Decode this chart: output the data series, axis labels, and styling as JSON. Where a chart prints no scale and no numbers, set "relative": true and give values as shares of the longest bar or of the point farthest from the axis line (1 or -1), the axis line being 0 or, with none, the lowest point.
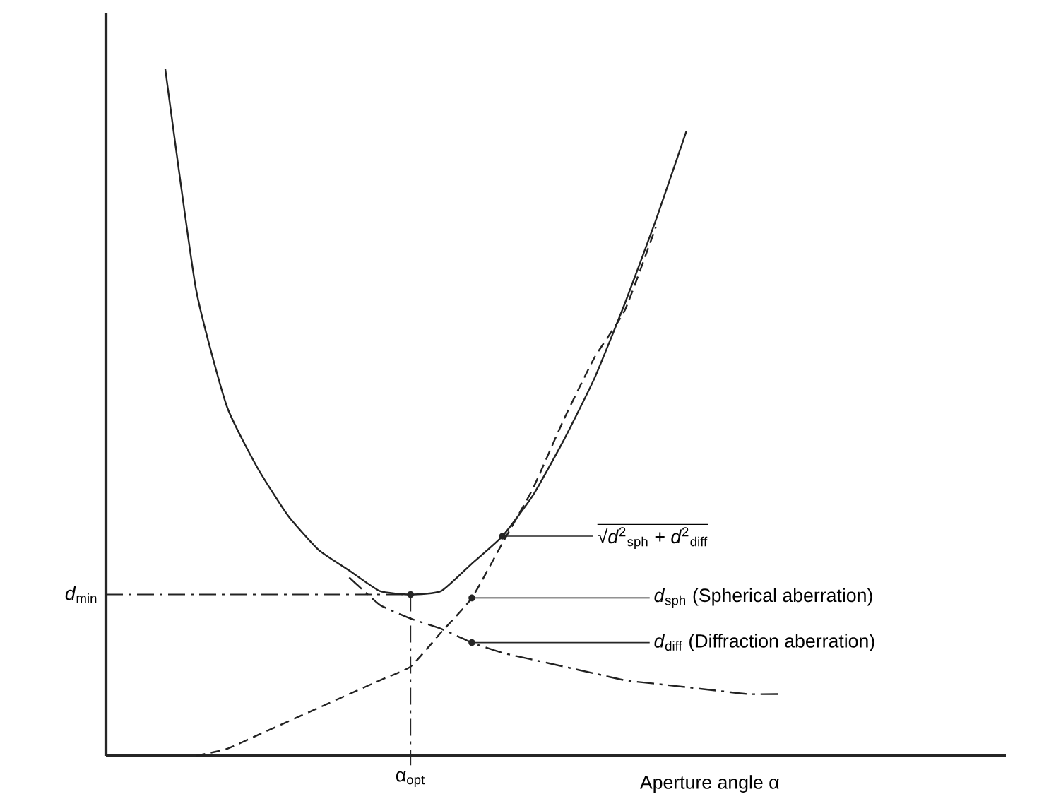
{
  "chart_data": {
    "type": "line",
    "relative": true,
    "xlabel": "Aperture angle α",
    "categories": [
      null,
      null,
      null,
      null,
      null,
      null,
      null,
      null,
      null,
      null,
      null,
      null,
      null,
      null,
      null,
      null,
      null,
      null,
      null,
      null,
      null
    ],
    "series": [
      {
        "color": "#222222",
        "line_style": "solid",
        "values": [
          1.0,
          0.68,
          0.51,
          0.42,
          0.35,
          0.3,
          0.27,
          0.24,
          0.235,
          0.24,
          0.28,
          0.32,
          0.38,
          0.46,
          0.55,
          0.66,
          0.78,
          0.91,
          null,
          null,
          null
        ]
      },
      {
        "color": "#222222",
        "line_style": "dashed",
        "values": [
          null,
          0.0,
          0.01,
          0.03,
          0.05,
          0.07,
          0.09,
          0.11,
          0.13,
          0.18,
          0.23,
          0.31,
          0.39,
          0.49,
          0.58,
          0.65,
          0.77,
          null,
          null,
          null,
          null
        ]
      },
      {
        "color": "#222222",
        "line_style": "dashdot",
        "values": [
          null,
          null,
          null,
          null,
          null,
          null,
          0.26,
          0.22,
          0.2,
          0.185,
          0.165,
          0.15,
          0.14,
          0.13,
          0.12,
          0.11,
          0.105,
          0.1,
          0.095,
          0.09,
          0.09
        ]
      }
    ],
    "ref_lines": [
      {
        "axis": "y",
        "value": 0.235,
        "label": "*d*$_{min}$",
        "line_style": "dashdot",
        "color": "#222222"
      }
    ],
    "annotations": [
      "√*d*$^{2}$$_{sph}$ + *d*$^{2}$$_{diff}$",
      "*d*$_{sph}$  (Spherical aberration)",
      "*d*$_{diff}$  (Diffraction aberration)",
      "α$_{opt}$"
    ]
  }
}
